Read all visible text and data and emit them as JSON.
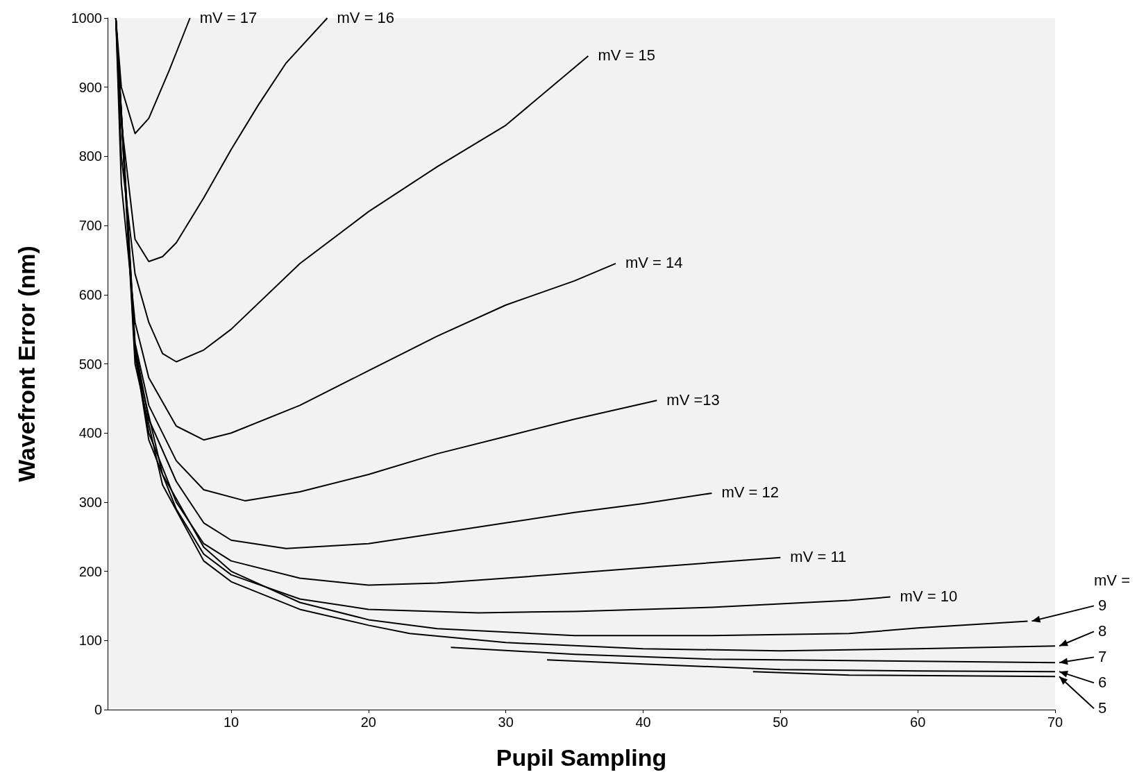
{
  "chart_data": {
    "type": "line",
    "xlabel": "Pupil Sampling",
    "ylabel": "Wavefront Error (nm)",
    "xlim": [
      1,
      70
    ],
    "xticks": [
      10,
      20,
      30,
      40,
      50,
      60,
      70
    ],
    "ylim": [
      0,
      1000
    ],
    "yticks": [
      0,
      100,
      200,
      300,
      400,
      500,
      600,
      700,
      800,
      900,
      1000
    ],
    "marker": "none",
    "line_style": "solid",
    "series": [
      {
        "color": "#000000",
        "x": [
          1.6,
          2,
          3,
          4,
          5.5,
          7
        ],
        "values": [
          1000,
          900,
          833,
          855,
          925,
          1000
        ]
      },
      {
        "color": "#000000",
        "x": [
          1.6,
          2,
          3,
          4,
          5,
          6,
          8,
          10,
          12,
          14,
          17
        ],
        "values": [
          1000,
          850,
          680,
          648,
          655,
          675,
          740,
          810,
          875,
          935,
          1000
        ]
      },
      {
        "color": "#000000",
        "x": [
          1.6,
          2,
          3,
          4,
          5,
          6,
          8,
          10,
          15,
          20,
          25,
          30,
          36
        ],
        "values": [
          1000,
          800,
          630,
          560,
          515,
          503,
          520,
          550,
          645,
          720,
          785,
          845,
          945
        ]
      },
      {
        "color": "#000000",
        "x": [
          1.6,
          2,
          3,
          4,
          6,
          8,
          10,
          15,
          20,
          25,
          30,
          35,
          38
        ],
        "values": [
          1000,
          760,
          560,
          480,
          410,
          390,
          400,
          440,
          490,
          540,
          585,
          620,
          645
        ]
      },
      {
        "color": "#000000",
        "x": [
          1.6,
          3,
          4,
          6,
          8,
          11,
          15,
          20,
          25,
          30,
          35,
          41
        ],
        "values": [
          1000,
          530,
          440,
          360,
          318,
          302,
          315,
          340,
          370,
          395,
          420,
          447
        ]
      },
      {
        "color": "#000000",
        "x": [
          1.6,
          3,
          4,
          6,
          8,
          10,
          14,
          20,
          25,
          30,
          35,
          40,
          45
        ],
        "values": [
          1000,
          525,
          420,
          330,
          270,
          245,
          233,
          240,
          255,
          270,
          285,
          298,
          313
        ]
      },
      {
        "color": "#000000",
        "x": [
          1.6,
          3,
          4,
          6,
          8,
          10,
          15,
          20,
          25,
          30,
          40,
          50
        ],
        "values": [
          1000,
          520,
          400,
          300,
          240,
          215,
          190,
          180,
          183,
          190,
          205,
          220
        ]
      },
      {
        "color": "#000000",
        "x": [
          1.6,
          3,
          4,
          6,
          8,
          10,
          15,
          20,
          28,
          35,
          45,
          55,
          58
        ],
        "values": [
          1000,
          515,
          390,
          290,
          225,
          195,
          160,
          145,
          140,
          142,
          148,
          158,
          163
        ]
      },
      {
        "color": "#000000",
        "x": [
          1.6,
          3,
          5,
          8,
          10,
          15,
          20,
          25,
          35,
          45,
          55,
          60,
          68
        ],
        "values": [
          1000,
          510,
          340,
          235,
          200,
          155,
          130,
          117,
          107,
          107,
          110,
          118,
          128
        ]
      },
      {
        "color": "#000000",
        "x": [
          1.6,
          3,
          5,
          8,
          10,
          15,
          20,
          23,
          30,
          40,
          50,
          60,
          70
        ],
        "values": [
          1000,
          500,
          325,
          215,
          185,
          145,
          122,
          110,
          97,
          88,
          85,
          88,
          92
        ]
      },
      {
        "color": "#000000",
        "x": [
          26,
          35,
          45,
          60,
          70
        ],
        "values": [
          90,
          80,
          73,
          70,
          68
        ]
      },
      {
        "color": "#000000",
        "x": [
          33,
          40,
          50,
          60,
          70
        ],
        "values": [
          72,
          66,
          58,
          56,
          55
        ]
      },
      {
        "color": "#000000",
        "x": [
          48,
          55,
          70
        ],
        "values": [
          55,
          50,
          48
        ]
      }
    ],
    "annotations": [
      {
        "text": "mV = 17",
        "x": 7,
        "y": 1000
      },
      {
        "text": "mV = 16",
        "x": 17,
        "y": 1000
      },
      {
        "text": "mV = 15",
        "x": 36,
        "y": 945
      },
      {
        "text": "mV = 14",
        "x": 38,
        "y": 645
      },
      {
        "text": "mV =13",
        "x": 41,
        "y": 447
      },
      {
        "text": "mV = 12",
        "x": 45,
        "y": 313
      },
      {
        "text": "mV = 11",
        "x": 50,
        "y": 220
      },
      {
        "text": "mV = 10",
        "x": 58,
        "y": 163
      },
      "mV =",
      {
        "text": "9",
        "x": 68,
        "y": 128
      },
      {
        "text": "8",
        "x": 70,
        "y": 92
      },
      {
        "text": "7",
        "x": 70,
        "y": 68
      },
      {
        "text": "6",
        "x": 70,
        "y": 55
      },
      {
        "text": "5",
        "x": 70,
        "y": 48
      }
    ]
  }
}
